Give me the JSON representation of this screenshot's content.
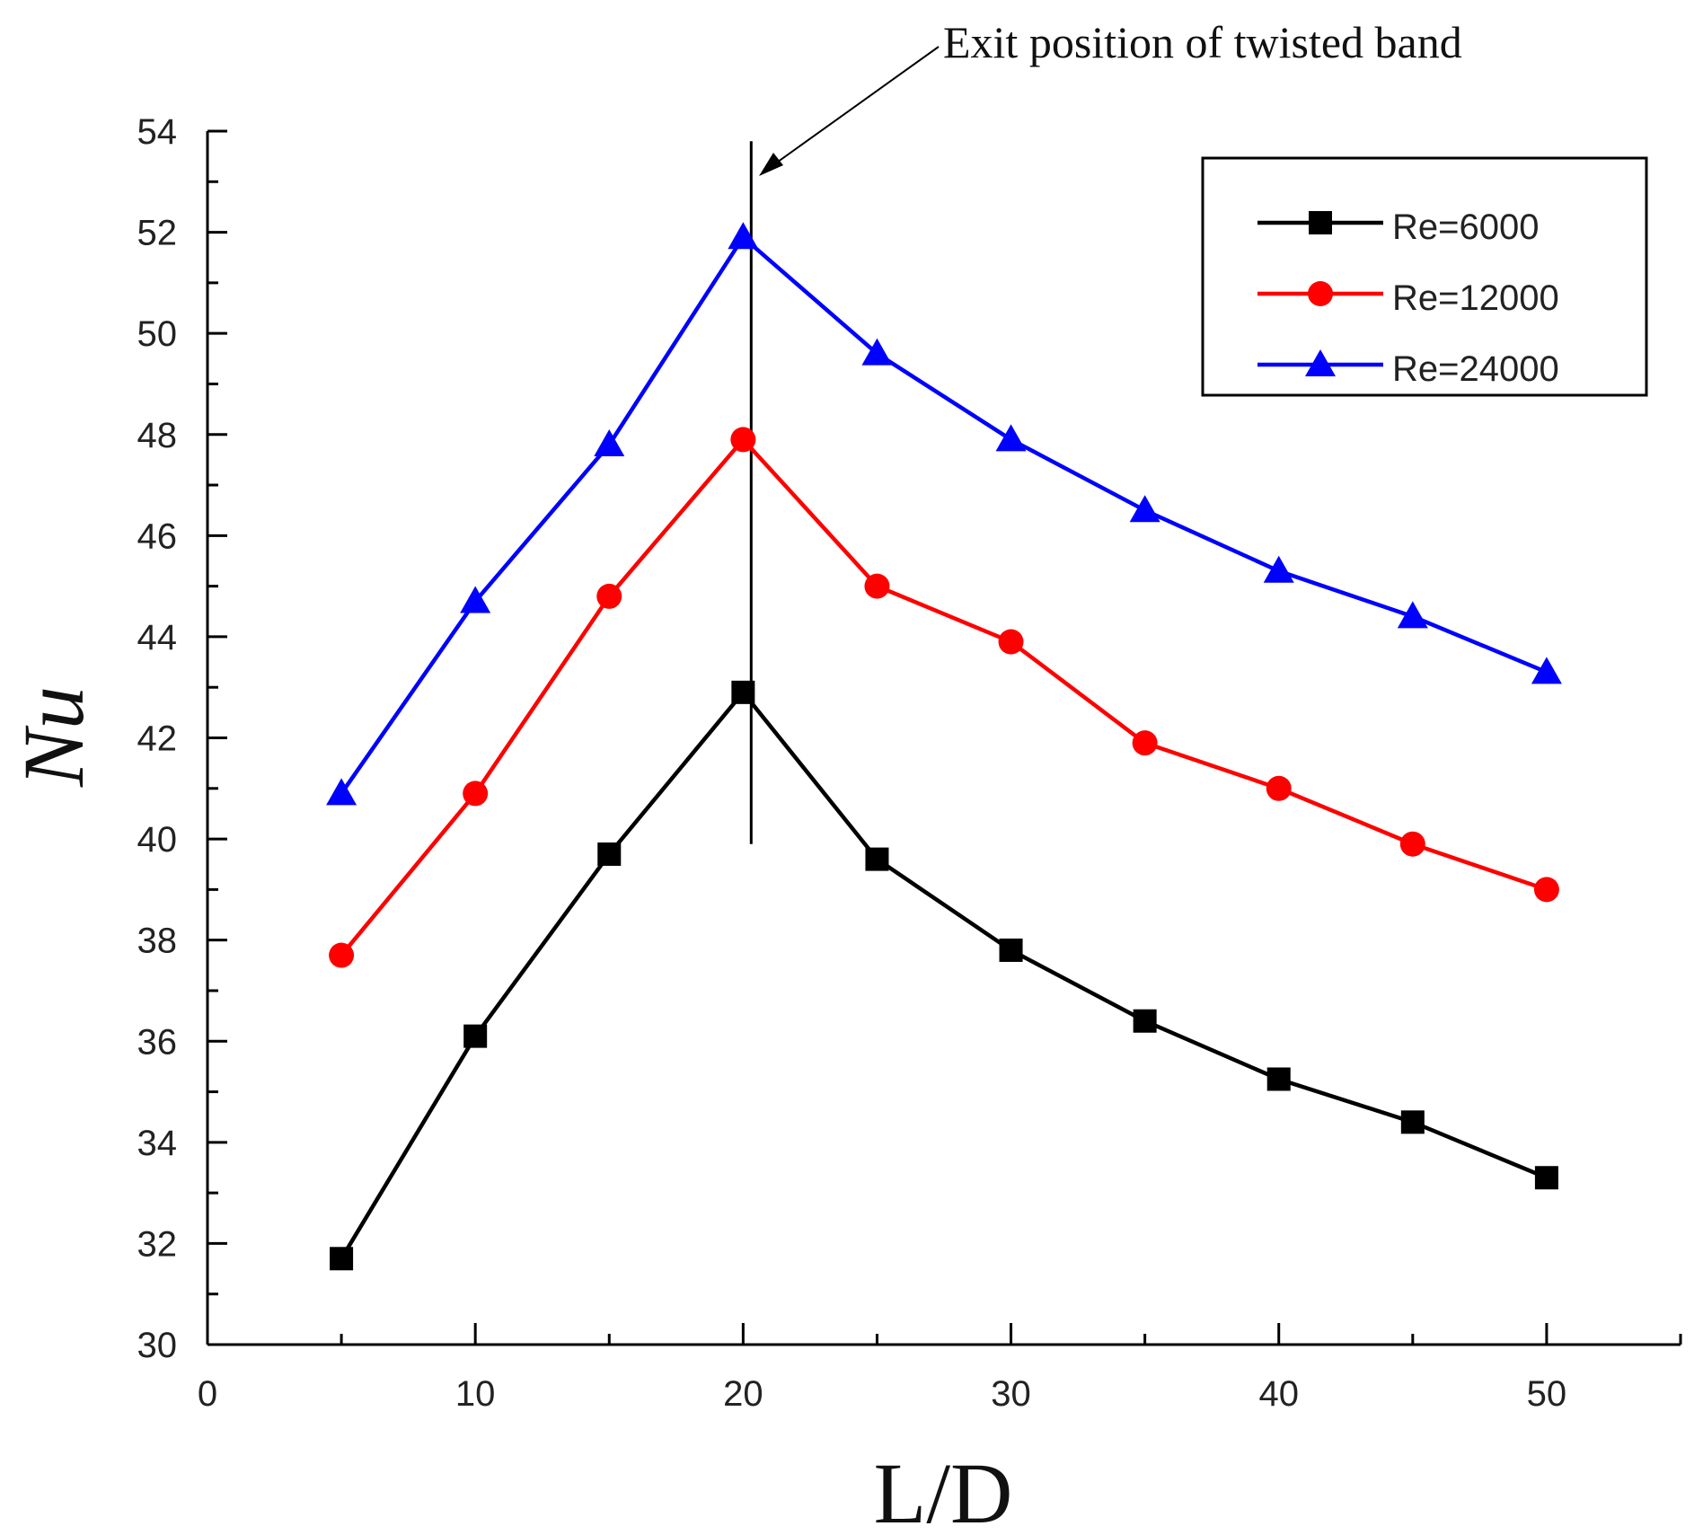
{
  "chart_data": {
    "type": "line",
    "title": "",
    "xlabel": "L/D",
    "ylabel": "Nu",
    "xlim": [
      0,
      55
    ],
    "ylim": [
      30,
      54
    ],
    "xticks": [
      0,
      10,
      20,
      30,
      40,
      50
    ],
    "yticks": [
      30,
      32,
      34,
      36,
      38,
      40,
      42,
      44,
      46,
      48,
      50,
      52,
      54
    ],
    "x": [
      5,
      10,
      15,
      20,
      25,
      30,
      35,
      40,
      45,
      50
    ],
    "series": [
      {
        "name": "Re=6000",
        "color": "#000000",
        "marker": "square",
        "values": [
          31.7,
          36.1,
          39.7,
          42.9,
          39.6,
          37.8,
          36.4,
          35.25,
          34.4,
          33.3
        ]
      },
      {
        "name": "Re=12000",
        "color": "#ff0000",
        "marker": "circle",
        "values": [
          37.7,
          40.9,
          44.8,
          47.9,
          45.0,
          43.9,
          41.9,
          41.0,
          39.9,
          39.0
        ]
      },
      {
        "name": "Re=24000",
        "color": "#0000ff",
        "marker": "triangle",
        "values": [
          40.9,
          44.7,
          47.8,
          51.9,
          49.6,
          47.9,
          46.5,
          45.3,
          44.4,
          43.3
        ]
      }
    ],
    "annotation": {
      "text": "Exit position of twisted band",
      "x": 20.3,
      "y_range": [
        39.9,
        53.8
      ]
    },
    "legend_position": "top-right",
    "grid": false
  }
}
